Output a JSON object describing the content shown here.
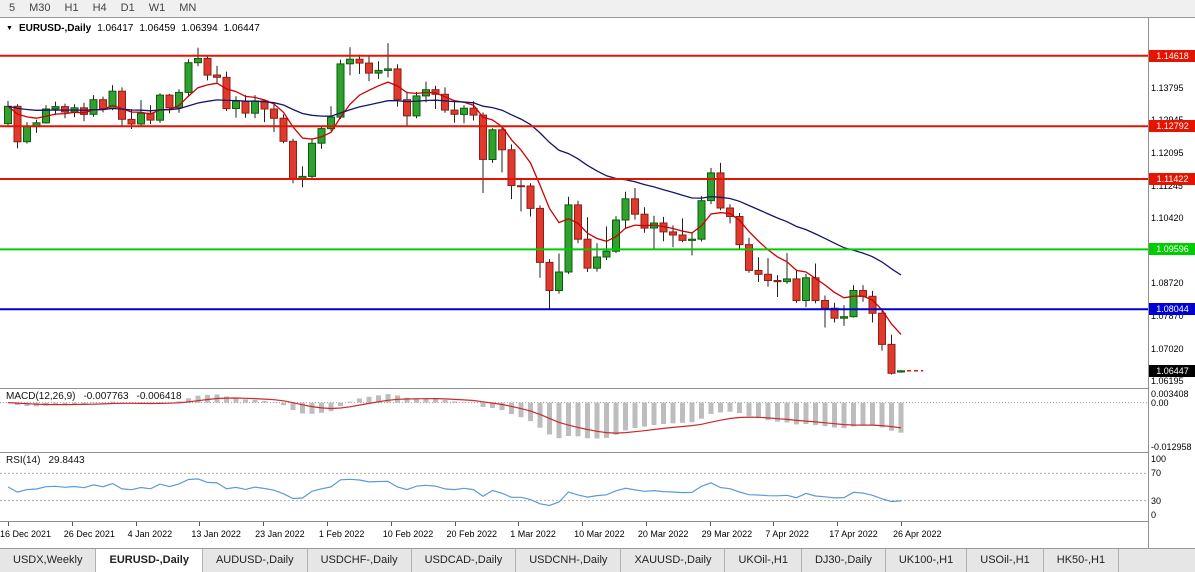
{
  "toolbar": {
    "timeframes": [
      {
        "label": "5"
      },
      {
        "label": "M30"
      },
      {
        "label": "H1"
      },
      {
        "label": "H4"
      },
      {
        "label": "D1"
      },
      {
        "label": "W1"
      },
      {
        "label": "MN"
      }
    ]
  },
  "chart_header": {
    "dropdown_icon": "▼",
    "symbol_period": "EURUSD-,Daily",
    "open": "1.06417",
    "high": "1.06459",
    "low": "1.06394",
    "close": "1.06447"
  },
  "chart_data": {
    "type": "candlestick",
    "symbol": "EURUSD-",
    "timeframe": "Daily",
    "price_range": {
      "min": 1.06,
      "max": 1.156
    },
    "x_labels": [
      "16 Dec 2021",
      "26 Dec 2021",
      "4 Jan 2022",
      "13 Jan 2022",
      "23 Jan 2022",
      "1 Feb 2022",
      "10 Feb 2022",
      "20 Feb 2022",
      "1 Mar 2022",
      "10 Mar 2022",
      "20 Mar 2022",
      "29 Mar 2022",
      "7 Apr 2022",
      "17 Apr 2022",
      "26 Apr 2022"
    ],
    "candles": [
      [
        1.1286,
        1.1345,
        1.128,
        1.1331
      ],
      [
        1.1331,
        1.1336,
        1.1222,
        1.1239
      ],
      [
        1.1239,
        1.129,
        1.1234,
        1.1278
      ],
      [
        1.1278,
        1.1296,
        1.1262,
        1.1288
      ],
      [
        1.1288,
        1.1334,
        1.1286,
        1.1324
      ],
      [
        1.1324,
        1.1343,
        1.1308,
        1.133
      ],
      [
        1.133,
        1.1338,
        1.13,
        1.1316
      ],
      [
        1.1316,
        1.1336,
        1.1303,
        1.1327
      ],
      [
        1.1327,
        1.134,
        1.1292,
        1.131
      ],
      [
        1.131,
        1.136,
        1.1304,
        1.1348
      ],
      [
        1.1348,
        1.1356,
        1.1315,
        1.1325
      ],
      [
        1.1325,
        1.1386,
        1.1321,
        1.137
      ],
      [
        1.137,
        1.138,
        1.1279,
        1.1297
      ],
      [
        1.1297,
        1.1324,
        1.1272,
        1.1285
      ],
      [
        1.1285,
        1.1347,
        1.128,
        1.1313
      ],
      [
        1.1313,
        1.1334,
        1.1285,
        1.1295
      ],
      [
        1.1295,
        1.1365,
        1.1288,
        1.136
      ],
      [
        1.136,
        1.1363,
        1.1313,
        1.1327
      ],
      [
        1.1327,
        1.1375,
        1.1314,
        1.1367
      ],
      [
        1.1367,
        1.1453,
        1.1355,
        1.1444
      ],
      [
        1.1444,
        1.1483,
        1.1435,
        1.1455
      ],
      [
        1.1455,
        1.146,
        1.1398,
        1.1412
      ],
      [
        1.1412,
        1.1436,
        1.1391,
        1.1406
      ],
      [
        1.1406,
        1.1421,
        1.1319,
        1.1325
      ],
      [
        1.1325,
        1.1357,
        1.1301,
        1.1344
      ],
      [
        1.1344,
        1.136,
        1.1301,
        1.1313
      ],
      [
        1.1313,
        1.136,
        1.13,
        1.1345
      ],
      [
        1.1345,
        1.1349,
        1.129,
        1.1324
      ],
      [
        1.1324,
        1.134,
        1.1264,
        1.13
      ],
      [
        1.13,
        1.131,
        1.1235,
        1.124
      ],
      [
        1.124,
        1.1247,
        1.1131,
        1.1144
      ],
      [
        1.1144,
        1.1175,
        1.1121,
        1.1149
      ],
      [
        1.1149,
        1.1248,
        1.1141,
        1.1235
      ],
      [
        1.1235,
        1.128,
        1.1221,
        1.1273
      ],
      [
        1.1273,
        1.1331,
        1.1267,
        1.1303
      ],
      [
        1.1303,
        1.1452,
        1.1298,
        1.1441
      ],
      [
        1.1441,
        1.1484,
        1.1411,
        1.1453
      ],
      [
        1.1453,
        1.1465,
        1.1415,
        1.1443
      ],
      [
        1.1443,
        1.146,
        1.1396,
        1.1417
      ],
      [
        1.1417,
        1.1448,
        1.1402,
        1.1424
      ],
      [
        1.1424,
        1.1495,
        1.1406,
        1.1428
      ],
      [
        1.1428,
        1.144,
        1.133,
        1.1348
      ],
      [
        1.1348,
        1.1369,
        1.128,
        1.1306
      ],
      [
        1.1306,
        1.1368,
        1.13,
        1.1358
      ],
      [
        1.1358,
        1.1395,
        1.1341,
        1.1374
      ],
      [
        1.1374,
        1.1384,
        1.1324,
        1.1362
      ],
      [
        1.1362,
        1.138,
        1.1314,
        1.1321
      ],
      [
        1.1321,
        1.1345,
        1.1288,
        1.131
      ],
      [
        1.131,
        1.1334,
        1.1287,
        1.1326
      ],
      [
        1.1326,
        1.1344,
        1.1294,
        1.1308
      ],
      [
        1.1308,
        1.1315,
        1.1106,
        1.1193
      ],
      [
        1.1193,
        1.1274,
        1.1184,
        1.127
      ],
      [
        1.127,
        1.1278,
        1.116,
        1.1218
      ],
      [
        1.1218,
        1.1232,
        1.109,
        1.1125
      ],
      [
        1.1125,
        1.1145,
        1.1058,
        1.1124
      ],
      [
        1.1124,
        1.1131,
        1.1045,
        1.1066
      ],
      [
        1.1066,
        1.1074,
        1.0886,
        1.0926
      ],
      [
        1.0926,
        1.0934,
        1.0806,
        1.0853
      ],
      [
        1.0853,
        1.0949,
        1.0845,
        1.0901
      ],
      [
        1.0901,
        1.1096,
        1.0896,
        1.1075
      ],
      [
        1.1075,
        1.1086,
        1.0976,
        1.0986
      ],
      [
        1.0986,
        1.1043,
        1.0901,
        1.0911
      ],
      [
        1.0911,
        1.0976,
        1.0902,
        1.094
      ],
      [
        1.094,
        1.1019,
        1.0932,
        1.0955
      ],
      [
        1.0955,
        1.1046,
        1.095,
        1.1036
      ],
      [
        1.1036,
        1.1109,
        1.1014,
        1.1091
      ],
      [
        1.1091,
        1.1119,
        1.1037,
        1.1051
      ],
      [
        1.1051,
        1.1069,
        1.1003,
        1.1015
      ],
      [
        1.1015,
        1.1047,
        1.0961,
        1.1028
      ],
      [
        1.1028,
        1.1044,
        1.0981,
        1.1005
      ],
      [
        1.1005,
        1.1022,
        1.0965,
        1.0997
      ],
      [
        1.0997,
        1.104,
        1.0978,
        1.0983
      ],
      [
        1.0983,
        1.1002,
        1.0944,
        1.0986
      ],
      [
        1.0986,
        1.1098,
        1.098,
        1.1086
      ],
      [
        1.1086,
        1.1171,
        1.1077,
        1.1158
      ],
      [
        1.1158,
        1.1184,
        1.1061,
        1.1067
      ],
      [
        1.1067,
        1.1077,
        1.1027,
        1.1045
      ],
      [
        1.1045,
        1.1054,
        1.096,
        1.0972
      ],
      [
        1.0972,
        1.099,
        1.0899,
        1.0905
      ],
      [
        1.0905,
        1.0939,
        1.0875,
        1.0895
      ],
      [
        1.0895,
        1.0937,
        1.0863,
        1.0879
      ],
      [
        1.0879,
        1.0893,
        1.0836,
        1.0876
      ],
      [
        1.0876,
        1.095,
        1.087,
        1.0883
      ],
      [
        1.0883,
        1.0904,
        1.0821,
        1.0827
      ],
      [
        1.0827,
        1.0896,
        1.081,
        1.0886
      ],
      [
        1.0886,
        1.0923,
        1.082,
        1.0827
      ],
      [
        1.0827,
        1.084,
        1.0757,
        1.0807
      ],
      [
        1.0807,
        1.0821,
        1.077,
        1.0781
      ],
      [
        1.0781,
        1.0815,
        1.0761,
        1.0785
      ],
      [
        1.0785,
        1.0867,
        1.0783,
        1.0853
      ],
      [
        1.0853,
        1.0867,
        1.0824,
        1.0838
      ],
      [
        1.0838,
        1.0852,
        1.077,
        1.0794
      ],
      [
        1.0794,
        1.08,
        1.0697,
        1.0713
      ],
      [
        1.0713,
        1.0738,
        1.0635,
        1.0638
      ],
      [
        1.06417,
        1.06459,
        1.06394,
        1.06447
      ]
    ],
    "y_axis_labels": [
      {
        "value": 1.13795,
        "text": "1.13795"
      },
      {
        "value": 1.12945,
        "text": "1.12945"
      },
      {
        "value": 1.12095,
        "text": "1.12095"
      },
      {
        "value": 1.11245,
        "text": "1.11245"
      },
      {
        "value": 1.1042,
        "text": "1.10420"
      },
      {
        "value": 1.0957,
        "text": "1.09570"
      },
      {
        "value": 1.0872,
        "text": "1.08720"
      },
      {
        "value": 1.0787,
        "text": "1.07870"
      },
      {
        "value": 1.0702,
        "text": "1.07020"
      },
      {
        "value": 1.06195,
        "text": "1.06195"
      }
    ],
    "levels": [
      {
        "value": 1.14618,
        "text": "1.14618",
        "color": "#e51400"
      },
      {
        "value": 1.12792,
        "text": "1.12792",
        "color": "#e51400"
      },
      {
        "value": 1.11422,
        "text": "1.11422",
        "color": "#e51400"
      },
      {
        "value": 1.09596,
        "text": "1.09596",
        "color": "#00cc00"
      },
      {
        "value": 1.08044,
        "text": "1.08044",
        "color": "#0000d4"
      }
    ],
    "current_price": {
      "value": 1.06447,
      "text": "1.06447",
      "color": "#000000"
    },
    "moving_averages": [
      {
        "name": "ma-fast",
        "period": 8,
        "color": "#cc0000"
      },
      {
        "name": "ma-slow",
        "period": 32,
        "color": "#16166b"
      }
    ],
    "candle_colors": {
      "bull": "#2ea12e",
      "bear": "#e03a2f",
      "wick": "#222222",
      "bull_border": "#0c5c0c",
      "bear_border": "#8f1f14"
    },
    "indicators": [
      {
        "type": "macd",
        "label": "MACD(12,26,9)",
        "value_main": "-0.007763",
        "value_signal": "-0.006418",
        "fast": 12,
        "slow": 26,
        "signal": 9,
        "axis_labels": [
          {
            "value": 0.003408,
            "text": "0.003408"
          },
          {
            "value": 0,
            "text": "0.00"
          },
          {
            "value": -0.012958,
            "text": "-0.012958"
          }
        ],
        "range": {
          "min": -0.0145,
          "max": 0.004
        },
        "colors": {
          "histogram": "#bdbdbd",
          "signal": "#cc2a2a",
          "zero_line": "#999999"
        }
      },
      {
        "type": "rsi",
        "label": "RSI(14)",
        "value": "29.8443",
        "period": 14,
        "axis_labels": [
          {
            "value": 100,
            "text": "100"
          },
          {
            "value": 70,
            "text": "70"
          },
          {
            "value": 30,
            "text": "30"
          },
          {
            "value": 0,
            "text": "0"
          }
        ],
        "levels": [
          70,
          30
        ],
        "range": {
          "min": 0,
          "max": 100
        },
        "colors": {
          "line": "#5b9bd5",
          "level_line": "#aaaaaa"
        }
      }
    ]
  },
  "tabs": [
    {
      "label": "USDX,Weekly",
      "active": false
    },
    {
      "label": "EURUSD-,Daily",
      "active": true
    },
    {
      "label": "AUDUSD-,Daily",
      "active": false
    },
    {
      "label": "USDCHF-,Daily",
      "active": false
    },
    {
      "label": "USDCAD-,Daily",
      "active": false
    },
    {
      "label": "USDCNH-,Daily",
      "active": false
    },
    {
      "label": "XAUUSD-,Daily",
      "active": false
    },
    {
      "label": "UKOil-,H1",
      "active": false
    },
    {
      "label": "DJ30-,Daily",
      "active": false
    },
    {
      "label": "UK100-,H1",
      "active": false
    },
    {
      "label": "USOil-,H1",
      "active": false
    },
    {
      "label": "HK50-,H1",
      "active": false
    }
  ]
}
